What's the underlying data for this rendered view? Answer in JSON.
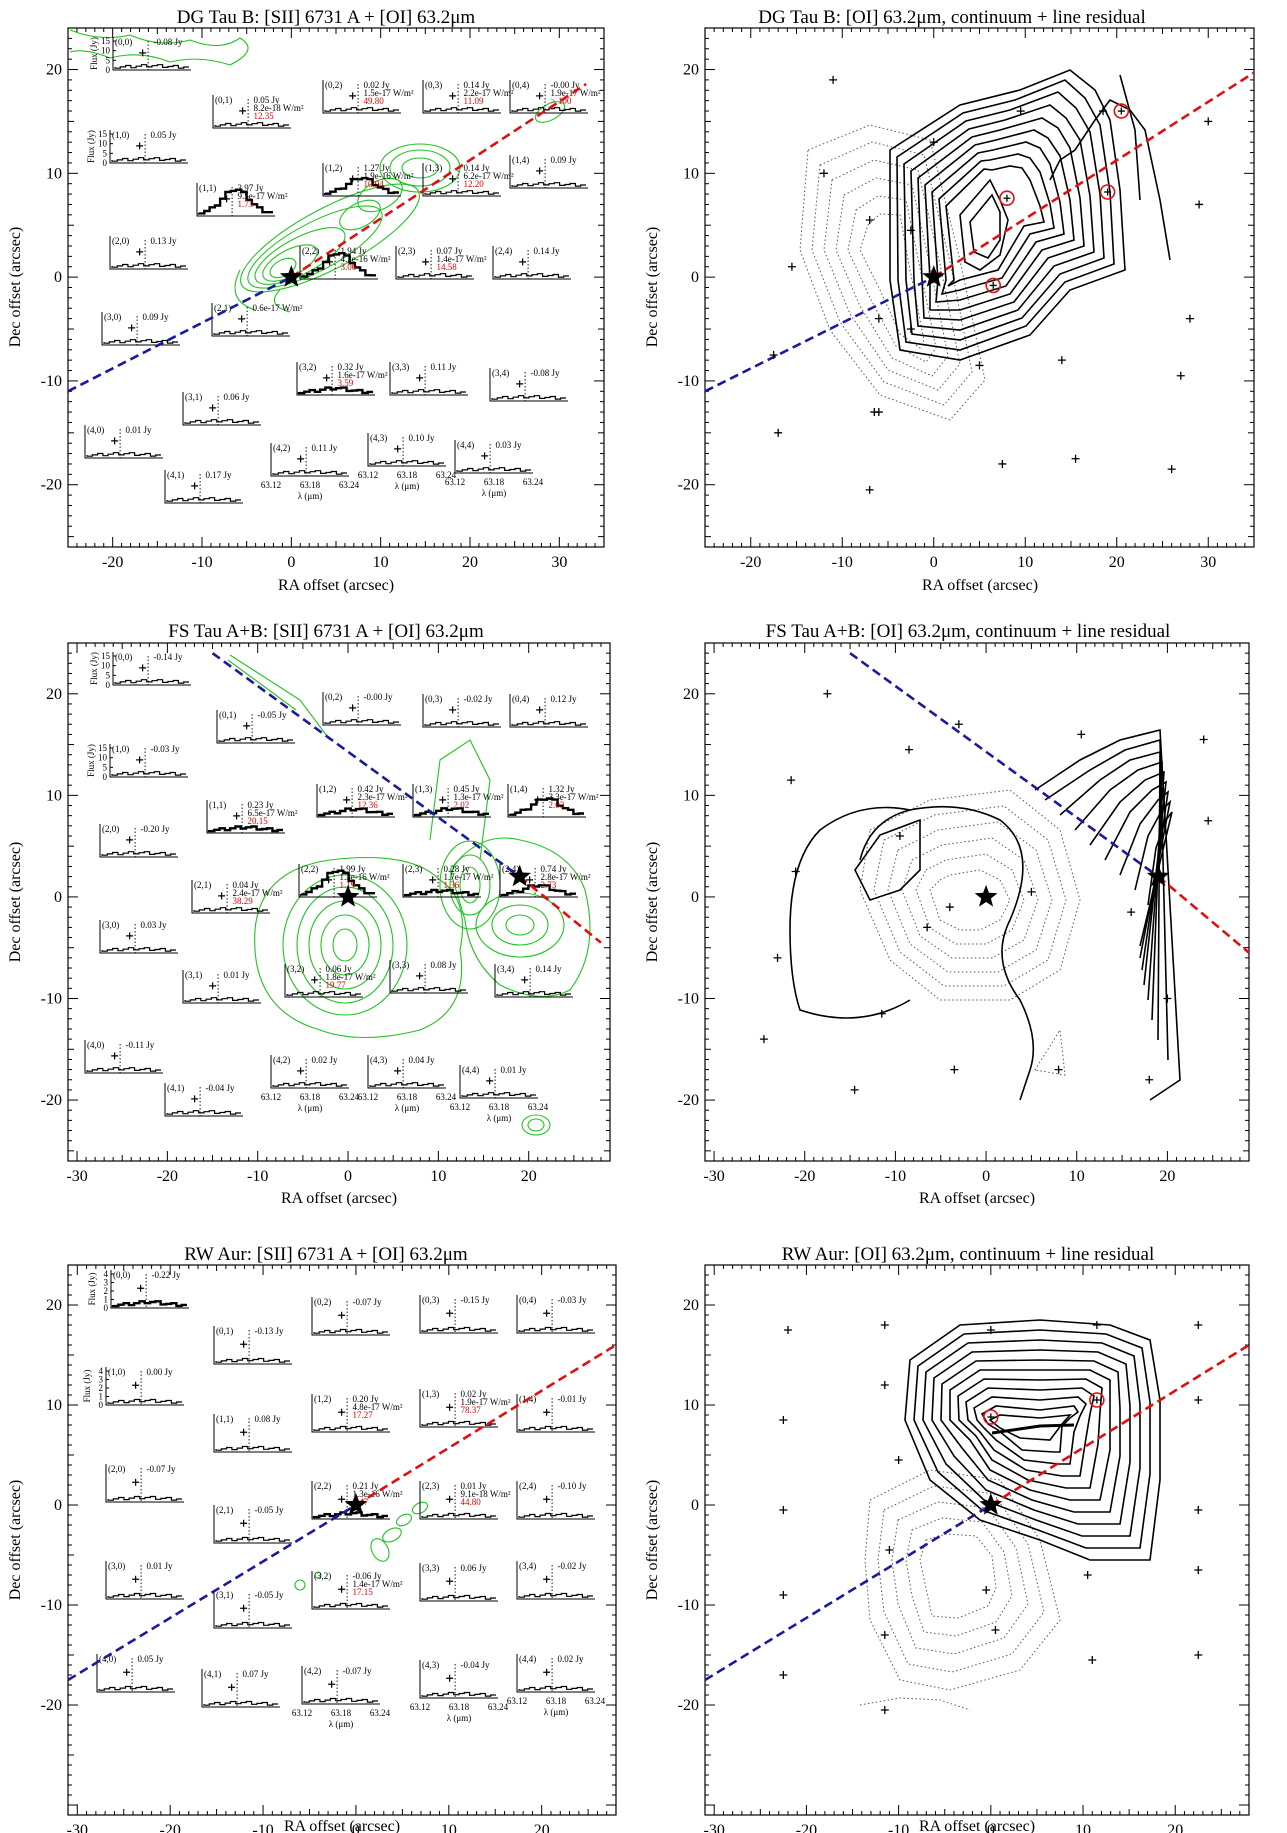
{
  "axis_labels": {
    "ra": "RA offset (arcsec)",
    "dec": "Dec offset (arcsec)",
    "flux": "Flux (Jy)",
    "lambda": "λ (μm)"
  },
  "panels": [
    {
      "id": "dg-left",
      "kind": "spectral-map",
      "title": "DG Tau B:  [SII] 6731 A + [OI] 63.2μm",
      "xlim": [
        -25,
        35
      ],
      "ylim": [
        -26,
        24
      ],
      "xticks": [
        -20,
        -10,
        0,
        10,
        20,
        30
      ],
      "yticks": [
        20,
        10,
        0,
        -10,
        -20
      ],
      "star": [
        [
          0,
          0
        ]
      ],
      "jet": {
        "blue": [
          [
            -25,
            -11
          ],
          [
            0,
            0
          ]
        ],
        "red": [
          [
            0,
            0
          ],
          [
            33,
            18.6
          ]
        ]
      },
      "flux_scale": {
        "max": 15,
        "ticks": [
          "15",
          "10",
          "5",
          "0"
        ]
      },
      "wavelength_ticks": [
        "63.12",
        "63.18",
        "63.24"
      ],
      "cells": [
        {
          "label": "(0,0)",
          "flux": "-0.08 Jy"
        },
        {
          "label": "(0,1)",
          "flux": "0.05 Jy",
          "line_flux": "8.2e-18 W/m²",
          "ratio": "12.35"
        },
        {
          "label": "(0,2)",
          "flux": "0.02 Jy",
          "line_flux": "1.5e-17 W/m²",
          "ratio": "49.80"
        },
        {
          "label": "(0,3)",
          "flux": "0.14 Jy",
          "line_flux": "2.2e-17 W/m²",
          "ratio": "11.09"
        },
        {
          "label": "(0,4)",
          "flux": "-0.00 Jy",
          "line_flux": "1.9e-17 W/m²",
          "ratio": "> 100"
        },
        {
          "label": "(1,0)",
          "flux": "0.05 Jy"
        },
        {
          "label": "(1,1)",
          "flux": "3.97 Jy",
          "line_flux": "9.5e-17 W/m²",
          "ratio": "1.73"
        },
        {
          "label": "(1,2)",
          "flux": "1.27 Jy",
          "line_flux": "1.9e-16 W/m²",
          "ratio": "10.94"
        },
        {
          "label": "(1,3)",
          "flux": "0.14 Jy",
          "line_flux": "6.2e-17 W/m²",
          "ratio": "12.20"
        },
        {
          "label": "(1,4)",
          "flux": "0.09 Jy"
        },
        {
          "label": "(2,0)",
          "flux": "0.13 Jy"
        },
        {
          "label": "(2,1)",
          "flux": "0.6e-17 W/m²"
        },
        {
          "label": "(2,2)",
          "flux": "1.94 Jy",
          "line_flux": "4.2e-16 W/m²",
          "ratio": "3.06"
        },
        {
          "label": "(2,3)",
          "flux": "0.07 Jy",
          "line_flux": "1.4e-17 W/m²",
          "ratio": "14.58"
        },
        {
          "label": "(2,4)",
          "flux": "0.14 Jy"
        },
        {
          "label": "(3,0)",
          "flux": "0.09 Jy"
        },
        {
          "label": "(3,1)",
          "flux": "0.06 Jy"
        },
        {
          "label": "(3,2)",
          "flux": "0.32 Jy",
          "line_flux": "1.6e-17 W/m²",
          "ratio": "3.59"
        },
        {
          "label": "(3,3)",
          "flux": "0.11 Jy"
        },
        {
          "label": "(3,4)",
          "flux": "-0.08 Jy"
        },
        {
          "label": "(4,0)",
          "flux": "0.01 Jy"
        },
        {
          "label": "(4,1)",
          "flux": "0.17 Jy"
        },
        {
          "label": "(4,2)",
          "flux": "0.11 Jy"
        },
        {
          "label": "(4,3)",
          "flux": "0.10 Jy"
        },
        {
          "label": "(4,4)",
          "flux": "0.03 Jy"
        }
      ]
    },
    {
      "id": "dg-right",
      "kind": "contour-map",
      "title": "DG Tau B:  [OI] 63.2μm, continuum + line residual",
      "xlim": [
        -25,
        35
      ],
      "ylim": [
        -26,
        24
      ],
      "xticks": [
        -20,
        -10,
        0,
        10,
        20,
        30
      ],
      "yticks": [
        20,
        10,
        0,
        -10,
        -20
      ],
      "star": [
        [
          0,
          0
        ]
      ],
      "jet": {
        "blue": [
          [
            -25,
            -11
          ],
          [
            0,
            0
          ]
        ],
        "red": [
          [
            0,
            0
          ],
          [
            35,
            19.7
          ]
        ]
      },
      "peaks": [
        [
          8,
          7.6
        ],
        [
          6.5,
          -0.8
        ],
        [
          19,
          8.2
        ],
        [
          20.5,
          16
        ]
      ],
      "spaxels": [
        [
          -11,
          19
        ],
        [
          -12,
          10
        ],
        [
          -7,
          5.5
        ],
        [
          -2.5,
          4.5
        ],
        [
          0,
          13
        ],
        [
          9.5,
          16
        ],
        [
          18.5,
          16
        ],
        [
          30,
          15
        ],
        [
          29,
          7
        ],
        [
          -15.5,
          1
        ],
        [
          -6,
          -4
        ],
        [
          -2.5,
          -5
        ],
        [
          -17.5,
          -7.5
        ],
        [
          5,
          -8.5
        ],
        [
          14,
          -8
        ],
        [
          28,
          -4
        ],
        [
          -6,
          -13
        ],
        [
          -17,
          -15
        ],
        [
          -7,
          -20.5
        ],
        [
          7.5,
          -18
        ],
        [
          15.5,
          -17.5
        ],
        [
          26,
          -18.5
        ],
        [
          -6.5,
          -13
        ],
        [
          27,
          -9.5
        ]
      ]
    },
    {
      "id": "fs-left",
      "kind": "spectral-map",
      "title": "FS Tau A+B:  [SII] 6731 A + [OI] 63.2μm",
      "xlim": [
        -31,
        29
      ],
      "ylim": [
        -26,
        25
      ],
      "xticks": [
        -30,
        -20,
        -10,
        0,
        10,
        20
      ],
      "yticks": [
        20,
        10,
        0,
        -10,
        -20
      ],
      "star": [
        [
          0,
          0
        ],
        [
          19,
          2
        ]
      ],
      "jet": {
        "blue": [
          [
            -15,
            24
          ],
          [
            19,
            2
          ]
        ],
        "red": [
          [
            19,
            2
          ],
          [
            28,
            -4.5
          ]
        ]
      },
      "flux_scale": {
        "max": 15,
        "ticks": [
          "15",
          "10",
          "5",
          "0"
        ]
      },
      "wavelength_ticks": [
        "63.12",
        "63.18",
        "63.24"
      ],
      "cells": [
        {
          "label": "(0,0)",
          "flux": "-0.14 Jy"
        },
        {
          "label": "(0,1)",
          "flux": "-0.05 Jy"
        },
        {
          "label": "(0,2)",
          "flux": "-0.00 Jy"
        },
        {
          "label": "(0,3)",
          "flux": "-0.02 Jy"
        },
        {
          "label": "(0,4)",
          "flux": "0.12 Jy"
        },
        {
          "label": "(1,0)",
          "flux": "-0.03 Jy"
        },
        {
          "label": "(1,1)",
          "flux": "0.23 Jy",
          "line_flux": "6.5e-17 W/m²",
          "ratio": "20.15"
        },
        {
          "label": "(1,2)",
          "flux": "0.42 Jy",
          "line_flux": "2.3e-17 W/m²",
          "ratio": "12.36"
        },
        {
          "label": "(1,3)",
          "flux": "0.45 Jy",
          "line_flux": "1.3e-17 W/m²",
          "ratio": "2.02"
        },
        {
          "label": "(1,4)",
          "flux": "1.32 Jy",
          "line_flux": "3.3e-17 W/m²",
          "ratio": "2.03"
        },
        {
          "label": "(2,0)",
          "flux": "-0.20 Jy"
        },
        {
          "label": "(2,1)",
          "flux": "0.04 Jy",
          "line_flux": "2.4e-17 W/m²",
          "ratio": "38.29"
        },
        {
          "label": "(2,2)",
          "flux": "1.99 Jy",
          "line_flux": "1.3e-16 W/m²",
          "ratio": "1.19"
        },
        {
          "label": "(2,3)",
          "flux": "0.28 Jy",
          "line_flux": "1.7e-17 W/m²",
          "ratio": "1.36"
        },
        {
          "label": "(2,4)",
          "flux": "0.74 Jy",
          "line_flux": "2.8e-17 W/m²",
          "ratio": "2.73"
        },
        {
          "label": "(3,0)",
          "flux": "0.03 Jy"
        },
        {
          "label": "(3,1)",
          "flux": "0.01 Jy"
        },
        {
          "label": "(3,2)",
          "flux": "0.06 Jy",
          "line_flux": "1.8e-17 W/m²",
          "ratio": "19.77"
        },
        {
          "label": "(3,3)",
          "flux": "0.08 Jy"
        },
        {
          "label": "(3,4)",
          "flux": "0.14 Jy"
        },
        {
          "label": "(4,0)",
          "flux": "-0.11 Jy"
        },
        {
          "label": "(4,1)",
          "flux": "-0.04 Jy"
        },
        {
          "label": "(4,2)",
          "flux": "0.02 Jy"
        },
        {
          "label": "(4,3)",
          "flux": "0.04 Jy"
        },
        {
          "label": "(4,4)",
          "flux": "0.01 Jy"
        }
      ]
    },
    {
      "id": "fs-right",
      "kind": "contour-map",
      "title": "FS Tau A+B:  [OI] 63.2μm, continuum + line residual",
      "xlim": [
        -31,
        29
      ],
      "ylim": [
        -26,
        25
      ],
      "xticks": [
        -30,
        -20,
        -10,
        0,
        10,
        20
      ],
      "yticks": [
        20,
        10,
        0,
        -10,
        -20
      ],
      "star": [
        [
          0,
          0
        ],
        [
          19,
          2
        ]
      ],
      "jet": {
        "blue": [
          [
            -15,
            24
          ],
          [
            19,
            2
          ]
        ],
        "red": [
          [
            19,
            2
          ],
          [
            29,
            -5.5
          ]
        ]
      },
      "peaks": [],
      "spaxels": [
        [
          -17.5,
          20
        ],
        [
          -3,
          17
        ],
        [
          10.5,
          16
        ],
        [
          24,
          15.5
        ],
        [
          -21.5,
          11.5
        ],
        [
          -8.5,
          14.5
        ],
        [
          -21,
          2.5
        ],
        [
          -9.5,
          6
        ],
        [
          -6.5,
          -3
        ],
        [
          -11.5,
          -11.5
        ],
        [
          -3.5,
          -17
        ],
        [
          -14.5,
          -19
        ],
        [
          -23,
          -6
        ],
        [
          -24.5,
          -14
        ],
        [
          -4,
          -1
        ],
        [
          8,
          -17
        ],
        [
          18,
          -18
        ],
        [
          16,
          -1.5
        ],
        [
          20,
          -10
        ],
        [
          24.5,
          7.5
        ],
        [
          5,
          0.5
        ]
      ]
    },
    {
      "id": "rw-left",
      "kind": "spectral-map",
      "title": "RW Aur:  [SII] 6731 A + [OI] 63.2μm",
      "xlim": [
        -31,
        28
      ],
      "ylim": [
        -31,
        24
      ],
      "xticks": [
        -30,
        -20,
        -10,
        0,
        10,
        20
      ],
      "yticks": [
        20,
        10,
        0,
        -10,
        -20
      ],
      "star": [
        [
          0,
          0
        ]
      ],
      "jet": {
        "blue": [
          [
            -31,
            -17.5
          ],
          [
            0,
            0
          ]
        ],
        "red": [
          [
            0,
            0
          ],
          [
            28,
            16
          ]
        ]
      },
      "flux_scale": {
        "max": 4,
        "ticks": [
          "4",
          "3",
          "2",
          "1",
          "0"
        ]
      },
      "wavelength_ticks": [
        "63.12",
        "63.18",
        "63.24"
      ],
      "cells": [
        {
          "label": "(0,0)",
          "flux": "-0.22 Jy"
        },
        {
          "label": "(0,1)",
          "flux": "-0.13 Jy"
        },
        {
          "label": "(0,2)",
          "flux": "-0.07 Jy"
        },
        {
          "label": "(0,3)",
          "flux": "-0.15 Jy"
        },
        {
          "label": "(0,4)",
          "flux": "-0.03 Jy"
        },
        {
          "label": "(1,0)",
          "flux": "0.00 Jy"
        },
        {
          "label": "(1,1)",
          "flux": "0.08 Jy"
        },
        {
          "label": "(1,2)",
          "flux": "0.20 Jy",
          "line_flux": "4.8e-17 W/m²",
          "ratio": "17.27"
        },
        {
          "label": "(1,3)",
          "flux": "0.02 Jy",
          "line_flux": "1.9e-17 W/m²",
          "ratio": "78.37"
        },
        {
          "label": "(1,4)",
          "flux": "-0.01 Jy"
        },
        {
          "label": "(2,0)",
          "flux": "-0.07 Jy"
        },
        {
          "label": "(2,1)",
          "flux": "-0.05 Jy"
        },
        {
          "label": "(2,2)",
          "flux": "0.21 Jy",
          "line_flux": "1.3e-16 W/m²",
          "ratio": "3.47"
        },
        {
          "label": "(2,3)",
          "flux": "0.01 Jy",
          "line_flux": "9.1e-18 W/m²",
          "ratio": "44.80"
        },
        {
          "label": "(2,4)",
          "flux": "-0.10 Jy"
        },
        {
          "label": "(3,0)",
          "flux": "0.01 Jy"
        },
        {
          "label": "(3,1)",
          "flux": "-0.05 Jy"
        },
        {
          "label": "(3,2)",
          "flux": "-0.06 Jy",
          "line_flux": "1.4e-17 W/m²",
          "ratio": "17.15"
        },
        {
          "label": "(3,3)",
          "flux": "0.06 Jy"
        },
        {
          "label": "(3,4)",
          "flux": "-0.02 Jy"
        },
        {
          "label": "(4,0)",
          "flux": "0.05 Jy"
        },
        {
          "label": "(4,1)",
          "flux": "0.07 Jy"
        },
        {
          "label": "(4,2)",
          "flux": "-0.07 Jy"
        },
        {
          "label": "(4,3)",
          "flux": "-0.04 Jy"
        },
        {
          "label": "(4,4)",
          "flux": "0.02 Jy"
        }
      ]
    },
    {
      "id": "rw-right",
      "kind": "contour-map",
      "title": "RW Aur:  [OI] 63.2μm, continuum + line residual",
      "xlim": [
        -31,
        28
      ],
      "ylim": [
        -31,
        24
      ],
      "xticks": [
        -30,
        -20,
        -10,
        0,
        10,
        20
      ],
      "yticks": [
        20,
        10,
        0,
        -10,
        -20
      ],
      "star": [
        [
          0,
          0
        ]
      ],
      "jet": {
        "blue": [
          [
            -31,
            -17.5
          ],
          [
            0,
            0
          ]
        ],
        "red": [
          [
            0,
            0
          ],
          [
            28,
            16
          ]
        ]
      },
      "peaks": [
        [
          0,
          8.8
        ],
        [
          11.5,
          10.5
        ]
      ],
      "spaxels": [
        [
          -22,
          17.5
        ],
        [
          0,
          17.5
        ],
        [
          11.5,
          18
        ],
        [
          22.5,
          18
        ],
        [
          -22.5,
          8.5
        ],
        [
          -11.5,
          12
        ],
        [
          -10,
          4.5
        ],
        [
          22.5,
          10.5
        ],
        [
          -22.5,
          -0.5
        ],
        [
          -11,
          -4.5
        ],
        [
          -0.5,
          -8.5
        ],
        [
          10.5,
          -7
        ],
        [
          22.5,
          -6.5
        ],
        [
          -22.5,
          -9
        ],
        [
          -11.5,
          -13
        ],
        [
          0.5,
          -12.5
        ],
        [
          11,
          -15.5
        ],
        [
          22.5,
          -15
        ],
        [
          -22.5,
          -17
        ],
        [
          -11.5,
          -20.5
        ],
        [
          22.5,
          -0.5
        ],
        [
          -11.5,
          18
        ]
      ]
    }
  ]
}
